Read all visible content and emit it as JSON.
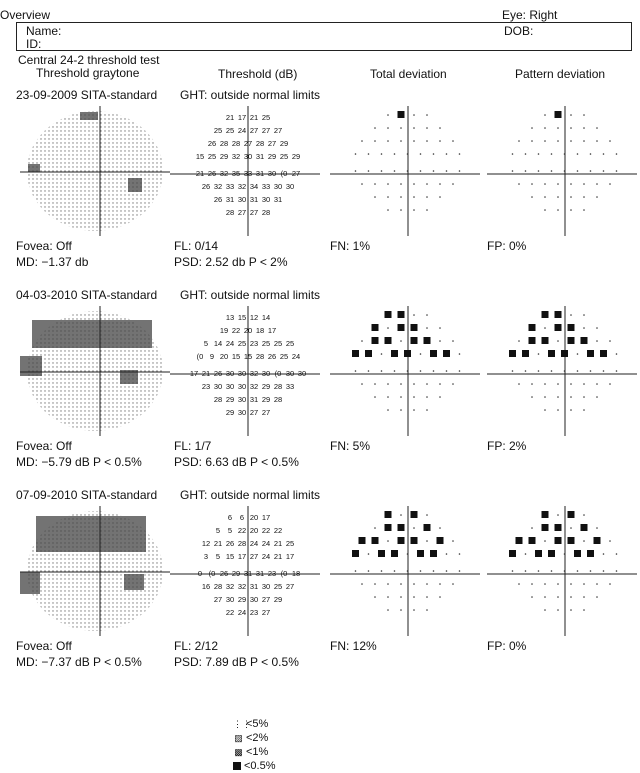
{
  "header": {
    "title": "Overview",
    "eye": "Eye: Right",
    "name_label": "Name:",
    "id_label": "ID:",
    "dob_label": "DOB:",
    "test": "Central 24-2 threshold test"
  },
  "columns": {
    "graytone": "Threshold graytone",
    "threshold": "Threshold (dB)",
    "total": "Total deviation",
    "pattern": "Pattern deviation"
  },
  "tests": [
    {
      "date_strategy": "23-09-2009 SITA-standard",
      "ght": "GHT: outside normal limits",
      "fovea": "Fovea: Off",
      "md": "MD: −1.37 db",
      "fl": "FL: 0/14",
      "psd": "PSD: 2.52 db P < 2%",
      "fn": "FN: 1%",
      "fp": "FP: 0%",
      "threshold_rows": [
        [
          "21",
          "17",
          "21",
          "25"
        ],
        [
          "25",
          "25",
          "24",
          "27",
          "27",
          "27"
        ],
        [
          "26",
          "28",
          "28",
          "27",
          "28",
          "27",
          "29"
        ],
        [
          "15",
          "25",
          "29",
          "32",
          "30",
          "31",
          "29",
          "25",
          "29"
        ],
        [
          "21",
          "26",
          "32",
          "35",
          "33",
          "31",
          "30",
          "(0",
          "27"
        ],
        [
          "26",
          "32",
          "33",
          "32",
          "34",
          "33",
          "30",
          "30"
        ],
        [
          "26",
          "31",
          "30",
          "31",
          "30",
          "31"
        ],
        [
          "28",
          "27",
          "27",
          "28"
        ]
      ]
    },
    {
      "date_strategy": "04-03-2010 SITA-standard",
      "ght": "GHT: outside normal limits",
      "fovea": "Fovea: Off",
      "md": "MD: −5.79 dB P < 0.5%",
      "fl": "FL: 1/7",
      "psd": "PSD: 6.63 dB P < 0.5%",
      "fn": "FN: 5%",
      "fp": "FP: 2%",
      "threshold_rows": [
        [
          "13",
          "15",
          "12",
          "14"
        ],
        [
          "19",
          "22",
          "20",
          "18",
          "17"
        ],
        [
          "5",
          "14",
          "24",
          "25",
          "23",
          "25",
          "25",
          "25"
        ],
        [
          "(0",
          "9",
          "20",
          "15",
          "15",
          "28",
          "26",
          "25",
          "24"
        ],
        [
          "17",
          "21",
          "26",
          "30",
          "30",
          "32",
          "30",
          "(0",
          "30",
          "30"
        ],
        [
          "23",
          "30",
          "30",
          "30",
          "32",
          "29",
          "28",
          "33"
        ],
        [
          "28",
          "29",
          "30",
          "31",
          "29",
          "28"
        ],
        [
          "29",
          "30",
          "27",
          "27"
        ]
      ]
    },
    {
      "date_strategy": "07-09-2010 SITA-standard",
      "ght": "GHT: outside normal limits",
      "fovea": "Fovea: Off",
      "md": "MD: −7.37 dB P < 0.5%",
      "fl": "FL: 2/12",
      "psd": "PSD: 7.89 dB P < 0.5%",
      "fn": "FN: 12%",
      "fp": "FP: 0%",
      "threshold_rows": [
        [
          "6",
          "6",
          "20",
          "17"
        ],
        [
          "5",
          "5",
          "22",
          "20",
          "22",
          "22"
        ],
        [
          "12",
          "21",
          "26",
          "28",
          "24",
          "24",
          "21",
          "25"
        ],
        [
          "3",
          "5",
          "15",
          "17",
          "27",
          "24",
          "21",
          "17"
        ],
        [
          "0",
          "(0",
          "26",
          "29",
          "31",
          "31",
          "23",
          "(0",
          "18"
        ],
        [
          "16",
          "28",
          "32",
          "32",
          "31",
          "30",
          "25",
          "27"
        ],
        [
          "27",
          "30",
          "29",
          "30",
          "27",
          "29"
        ],
        [
          "22",
          "24",
          "23",
          "27"
        ]
      ]
    }
  ],
  "legend": [
    {
      "icon": "dots-icon",
      "label": "<5%"
    },
    {
      "icon": "checker-icon",
      "label": "<2%"
    },
    {
      "icon": "dense-checker-icon",
      "label": "<1%"
    },
    {
      "icon": "solid-square-icon",
      "label": "<0.5%"
    }
  ]
}
